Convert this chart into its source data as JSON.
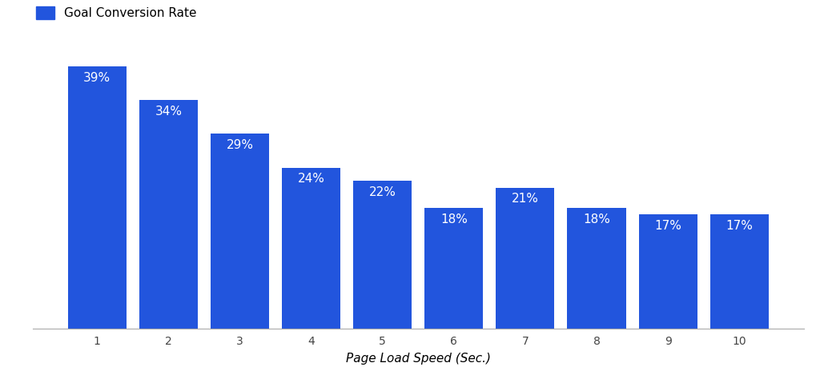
{
  "categories": [
    1,
    2,
    3,
    4,
    5,
    6,
    7,
    8,
    9,
    10
  ],
  "values": [
    39,
    34,
    29,
    24,
    22,
    18,
    21,
    18,
    17,
    17
  ],
  "bar_color": "#2255dd",
  "label_color": "#ffffff",
  "background_color": "#ffffff",
  "xlabel": "Page Load Speed (Sec.)",
  "legend_label": "Goal Conversion Rate",
  "label_fontsize": 11,
  "xlabel_fontsize": 11,
  "tick_fontsize": 10,
  "bar_width": 0.82,
  "ylim": [
    0,
    42
  ]
}
